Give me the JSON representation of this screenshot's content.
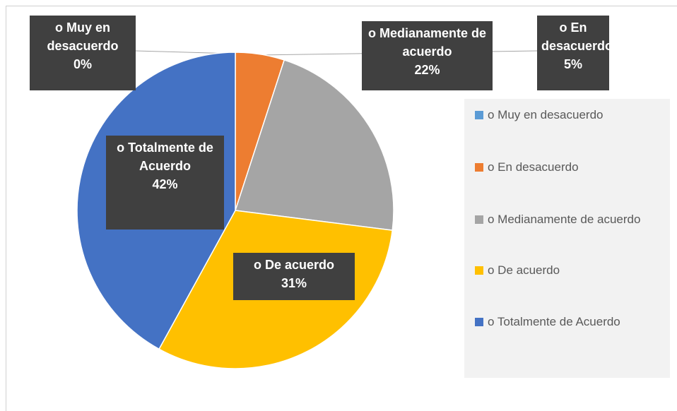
{
  "chart_data": {
    "type": "pie",
    "categories": [
      "o Muy en desacuerdo",
      "o En desacuerdo",
      "o Medianamente de acuerdo",
      "o De acuerdo",
      "o Totalmente de Acuerdo"
    ],
    "values": [
      0,
      5,
      22,
      31,
      42
    ],
    "value_labels": [
      "0%",
      "5%",
      "22%",
      "31%",
      "42%"
    ],
    "colors": [
      "#5b9bd5",
      "#ed7d31",
      "#a5a5a5",
      "#ffc000",
      "#4472c4"
    ],
    "legend": "right"
  }
}
